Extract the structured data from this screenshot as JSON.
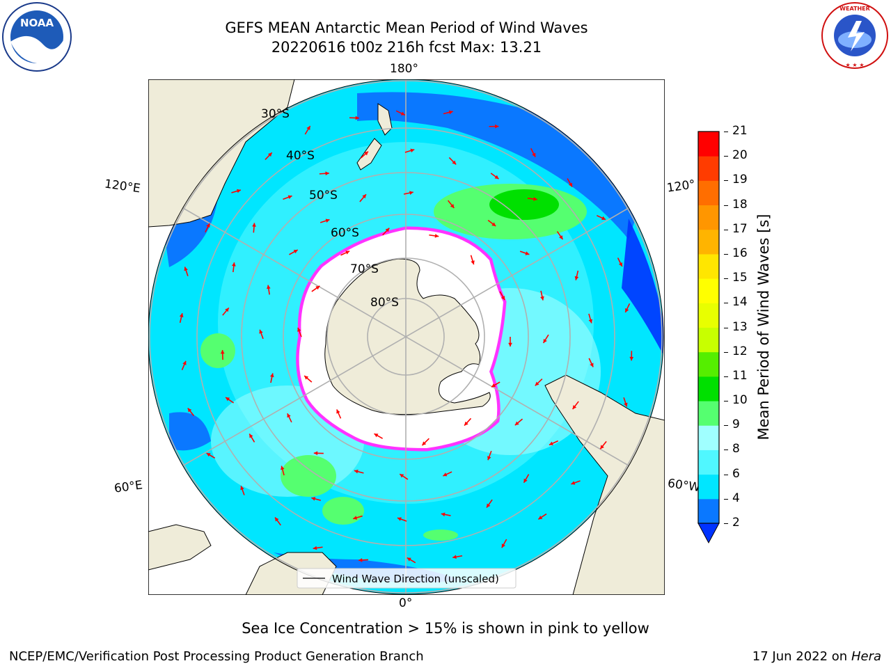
{
  "title": {
    "line1": "GEFS MEAN Antarctic Mean Period of Wind Waves",
    "line2": "20220616 t00z 216h fcst   Max: 13.21"
  },
  "logos": {
    "left": "NOAA",
    "right": "NATIONAL WEATHER SERVICE"
  },
  "map": {
    "projection": "south-polar-stereographic",
    "lon_labels": [
      "180°",
      "120°E",
      "120°",
      "60°E",
      "60°W",
      "0°"
    ],
    "lat_labels": [
      "30°S",
      "40°S",
      "50°S",
      "60°S",
      "70°S",
      "80°S"
    ],
    "legend_label": "Wind Wave Direction (unscaled)",
    "colors": {
      "land": "#efecd9",
      "sea_ice": "#ffffff",
      "ice_edge": "#ff33ff",
      "arrow": "#ff0000"
    }
  },
  "colorbar": {
    "label": "Mean Period of Wind Waves [s]",
    "ticks": [
      "2",
      "4",
      "6",
      "8",
      "9",
      "10",
      "11",
      "12",
      "13",
      "14",
      "15",
      "16",
      "17",
      "18",
      "19",
      "20",
      "21"
    ],
    "extend": "min",
    "colors": [
      "#0a78ff",
      "#00e6ff",
      "#50f7ff",
      "#a0ffff",
      "#55ff70",
      "#00e000",
      "#55ee00",
      "#c8ff00",
      "#e8ff00",
      "#ffff00",
      "#ffe600",
      "#ffb400",
      "#ff9600",
      "#ff6e00",
      "#ff3c00",
      "#ff0000"
    ],
    "under_color": "#0033ff"
  },
  "caption": "Sea Ice Concentration > 15% is shown in pink to yellow",
  "footer": {
    "left": "NCEP/EMC/Verification Post Processing Product Generation Branch",
    "right_date": "17 Jun 2022 on",
    "right_host": "Hera"
  }
}
